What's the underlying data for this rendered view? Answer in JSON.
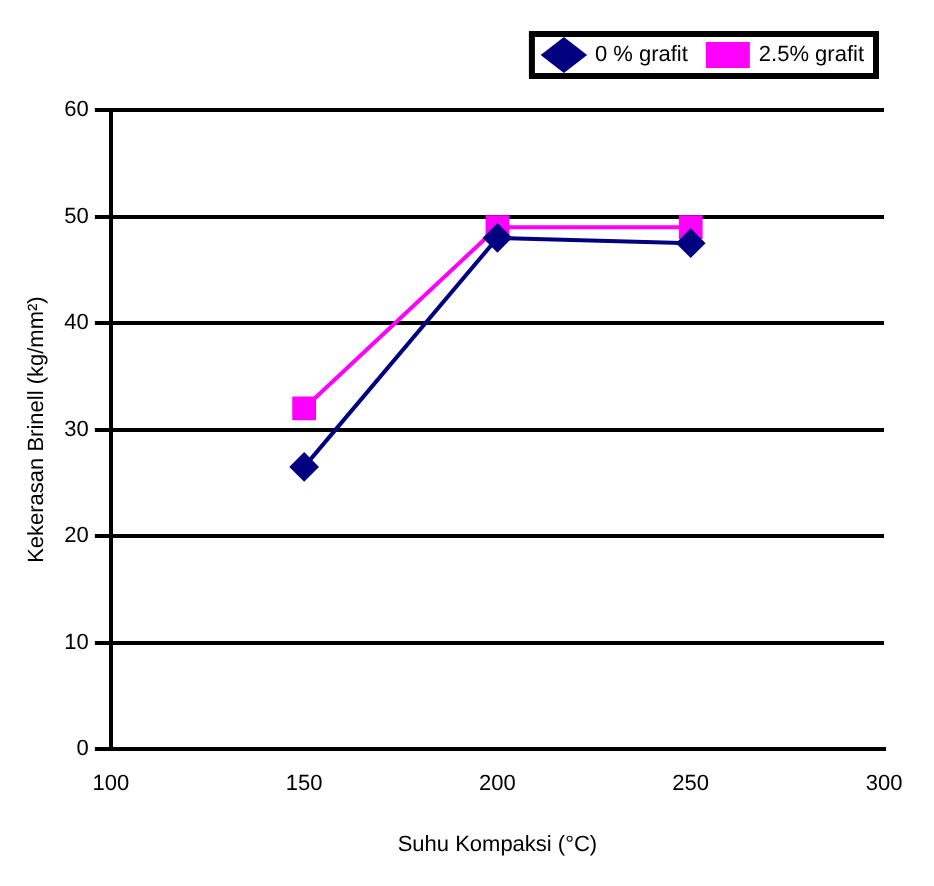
{
  "chart_data": {
    "type": "line",
    "xlabel": "Suhu Kompaksi (°C)",
    "ylabel": "Kekerasan Brinell (kg/mm²)",
    "x": [
      150,
      200,
      250
    ],
    "series": [
      {
        "name": "0 % grafit",
        "color": "#000080",
        "values": [
          26.5,
          48,
          47.5
        ],
        "marker": "diamond"
      },
      {
        "name": "2.5% grafit",
        "color": "#ff00ff",
        "values": [
          32,
          49,
          49
        ],
        "marker": "square"
      }
    ],
    "xlim": [
      100,
      300
    ],
    "xticks": [
      100,
      150,
      200,
      250,
      300
    ],
    "ylim": [
      0,
      60
    ],
    "yticks": [
      0,
      10,
      20,
      30,
      40,
      50,
      60
    ],
    "grid": "y",
    "legend": "top right"
  }
}
